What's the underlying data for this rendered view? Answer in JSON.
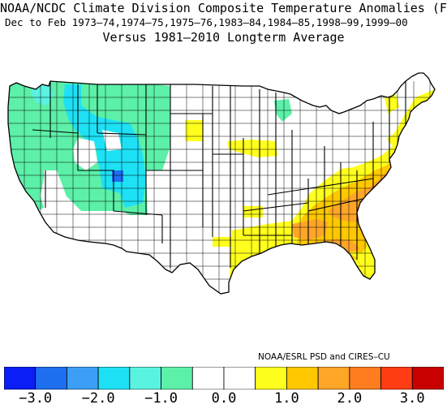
{
  "title": {
    "line1": "NOAA/NCDC Climate Division Composite Temperature Anomalies (F)",
    "line2": "Dec to Feb  1973–74,1974–75,1975–76,1983–84,1984–85,1998–99,1999–00",
    "line3": "Versus 1981–2010 Longterm Average"
  },
  "credit": "NOAA/ESRL PSD and CIRES–CU",
  "colorbar": {
    "colors": [
      "#0a1ef5",
      "#1e6ef0",
      "#3c9ff5",
      "#1ee1f5",
      "#5af2e0",
      "#5cf0a8",
      "#ffffff",
      "#ffffff",
      "#ffff1e",
      "#ffc800",
      "#ffa528",
      "#ff7d1e",
      "#ff3c14",
      "#c80000"
    ],
    "ticks": [
      "−3.0",
      "−2.0",
      "−1.0",
      "0.0",
      "1.0",
      "2.0",
      "3.0"
    ]
  },
  "map_colors": {
    "cool_light": "#5cf0a8",
    "cool_mid": "#5af2e0",
    "cool_strong": "#1ee1f5",
    "cool_deep": "#1e6ef0",
    "warm_light": "#ffff1e",
    "warm_mid": "#ffc800",
    "warm_strong": "#ffa528",
    "warm_deep": "#ff7d1e"
  }
}
